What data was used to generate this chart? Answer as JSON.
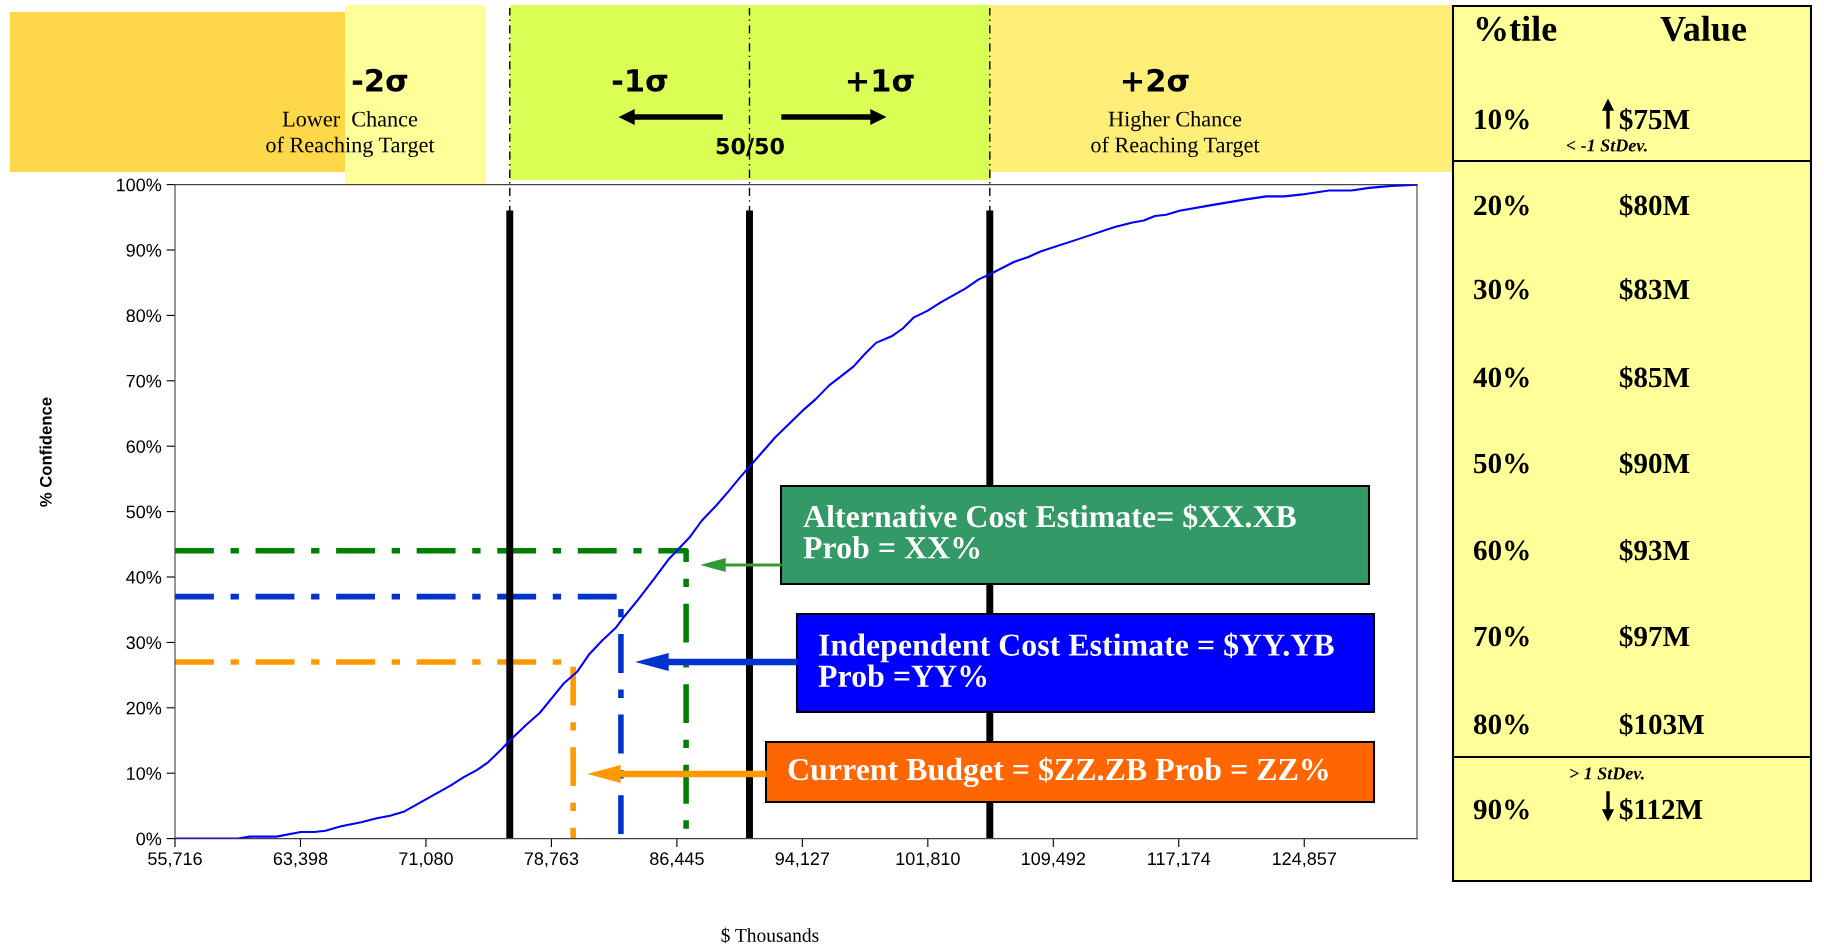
{
  "chart_data": [
    {
      "type": "line",
      "xlabel": "$ Thousands",
      "ylabel": "% Confidence",
      "xlim": [
        55716,
        131761
      ],
      "ylim": [
        0,
        100
      ],
      "xticks": [
        {
          "value": 55716,
          "label": "55,716"
        },
        {
          "value": 63398,
          "label": "63,398"
        },
        {
          "value": 71080,
          "label": "71,080"
        },
        {
          "value": 78763,
          "label": "78,763"
        },
        {
          "value": 86445,
          "label": "86,445"
        },
        {
          "value": 94127,
          "label": "94,127"
        },
        {
          "value": 101810,
          "label": "101,810"
        },
        {
          "value": 109492,
          "label": "109,492"
        },
        {
          "value": 117174,
          "label": "117,174"
        },
        {
          "value": 124857,
          "label": "124,857"
        }
      ],
      "yticks": [
        {
          "value": 0,
          "label": "0%"
        },
        {
          "value": 10,
          "label": "10%"
        },
        {
          "value": 20,
          "label": "20%"
        },
        {
          "value": 30,
          "label": "30%"
        },
        {
          "value": 40,
          "label": "40%"
        },
        {
          "value": 50,
          "label": "50%"
        },
        {
          "value": 60,
          "label": "60%"
        },
        {
          "value": 70,
          "label": "70%"
        },
        {
          "value": 80,
          "label": "80%"
        },
        {
          "value": 90,
          "label": "90%"
        },
        {
          "value": 100,
          "label": "100%"
        }
      ],
      "grid": false,
      "marker": "none",
      "series": [
        {
          "color": "#0000ff",
          "line_style": "solid",
          "x": [
            55716,
            59597,
            60280,
            61920,
            63423,
            64243,
            64926,
            65883,
            67113,
            68069,
            68889,
            69709,
            71075,
            72579,
            73399,
            74219,
            74902,
            75722,
            76214,
            77225,
            78045,
            79548,
            80368,
            81052,
            81872,
            82692,
            83238,
            84058,
            85015,
            85971,
            87201,
            87967,
            88841,
            89607,
            90300,
            92486,
            94126,
            94946,
            95766,
            96449,
            97269,
            97952,
            98636,
            99592,
            100275,
            100959,
            101779,
            102599,
            104102,
            104922,
            105605,
            107108,
            107928,
            108748,
            111071,
            113257,
            114351,
            115034,
            115717,
            116400,
            117220,
            119270,
            121183,
            122549,
            123643,
            124736,
            126376,
            127743,
            128836,
            130203,
            131761
          ],
          "values": [
            0,
            0,
            0.3,
            0.3,
            1.0,
            1.0,
            1.2,
            1.9,
            2.5,
            3.1,
            3.5,
            4.1,
            6.0,
            8.1,
            9.4,
            10.5,
            11.7,
            13.7,
            15.0,
            17.4,
            19.2,
            23.8,
            25.6,
            28.1,
            30.3,
            32.2,
            34.0,
            36.5,
            39.6,
            42.8,
            46.0,
            48.6,
            50.9,
            53.1,
            55.2,
            61.4,
            65.4,
            67.2,
            69.3,
            70.6,
            72.2,
            74.1,
            75.8,
            76.8,
            78.0,
            79.7,
            80.7,
            82.0,
            84.1,
            85.5,
            86.3,
            88.2,
            88.9,
            89.8,
            91.7,
            93.5,
            94.2,
            94.5,
            95.2,
            95.4,
            96.0,
            96.9,
            97.7,
            98.2,
            98.2,
            98.5,
            99.1,
            99.1,
            99.5,
            99.8,
            100
          ]
        },
        {
          "color": "#008000",
          "line_style": "dashed",
          "x": [
            55716,
            87009,
            87009
          ],
          "values": [
            44,
            44,
            0
          ]
        },
        {
          "color": "#0033cc",
          "line_style": "dashed",
          "x": [
            55716,
            83019,
            83019
          ],
          "values": [
            37,
            37,
            0
          ]
        },
        {
          "color": "#ff9900",
          "line_style": "dashed",
          "x": [
            55716,
            80094,
            80094
          ],
          "values": [
            27,
            27,
            0
          ]
        }
      ],
      "ref_lines": [
        {
          "axis": "x",
          "value": 76214,
          "color": "#000000"
        },
        {
          "axis": "x",
          "value": 90891,
          "color": "#000000"
        },
        {
          "axis": "x",
          "value": 105605,
          "color": "#000000"
        }
      ],
      "annotations": [
        "-2σ",
        "Lower  Chance\nof Reaching Target",
        "-1σ",
        "+1σ",
        "50/50",
        "+2σ",
        "Higher Chance\nof Reaching Target",
        "Alternative Cost Estimate= $XX.XB\nProb = XX%",
        "Independent Cost Estimate = $YY.YB\nProb =YY%",
        "Current Budget = $ZZ.ZB Prob = ZZ%"
      ]
    },
    {
      "type": "other",
      "annotations": [
        "%tile",
        "Value",
        "10%            $75M",
        "< -1 StDev.",
        "20%            $80M",
        "30%            $83M",
        "40%            $85M",
        "50%            $90M",
        "60%            $93M",
        "70%            $97M",
        "80%            $103M",
        "> 1 StDev.",
        "90%            $112M"
      ]
    }
  ]
}
